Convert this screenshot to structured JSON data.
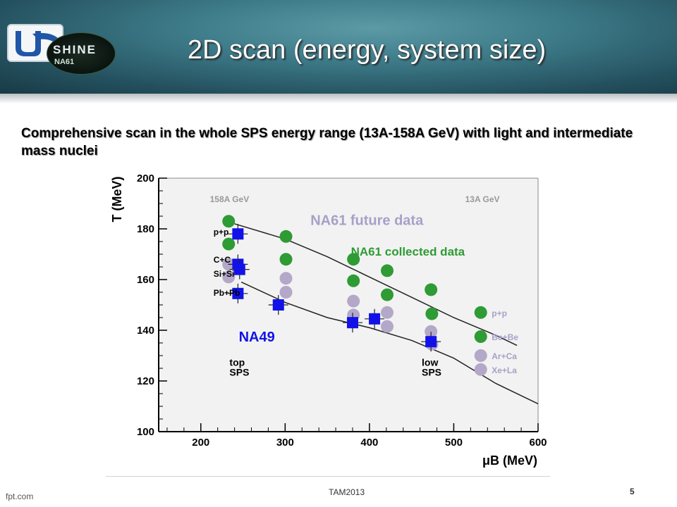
{
  "slide": {
    "title": "2D scan (energy, system size)",
    "subtitle": "Comprehensive scan in the whole SPS energy range (13A-158A GeV) with light and intermediate mass nuclei",
    "footer_left": "fpt.com",
    "footer_center": "TAM2013",
    "page_number": "5",
    "logo_shine": "SHINE",
    "logo_na61": "NA61"
  },
  "chart_data": {
    "type": "scatter",
    "xlabel": "μB (MeV)",
    "ylabel": "T (MeV)",
    "xlim": [
      150,
      600
    ],
    "ylim": [
      100,
      200
    ],
    "x_ticks": [
      200,
      300,
      400,
      500,
      600
    ],
    "y_ticks": [
      100,
      120,
      140,
      160,
      180,
      200
    ],
    "annotations": {
      "top_left_energy": "158A GeV",
      "top_right_energy": "13A GeV",
      "future_label": "NA61 future data",
      "collected_label": "NA61 collected data",
      "na49_label": "NA49",
      "top_sps": "top\nSPS",
      "low_sps": "low\nSPS"
    },
    "left_system_labels": [
      {
        "text": "p+p",
        "y": 179
      },
      {
        "text": "C+C",
        "y": 168
      },
      {
        "text": "Si+Si",
        "y": 162.5
      },
      {
        "text": "Pb+Pb",
        "y": 155
      }
    ],
    "right_legend": [
      {
        "text": "p+p",
        "color": "#2e9b34",
        "y": 147
      },
      {
        "text": "Be+Be",
        "color": "#2e9b34",
        "y": 137.5
      },
      {
        "text": "Ar+Ca",
        "color": "#b3a8c8",
        "y": 130
      },
      {
        "text": "Xe+La",
        "color": "#b3a8c8",
        "y": 124.5
      }
    ],
    "curves": [
      {
        "name": "p+p freeze-out line",
        "points": [
          [
            240,
            182
          ],
          [
            300,
            176
          ],
          [
            350,
            169
          ],
          [
            400,
            161
          ],
          [
            450,
            153
          ],
          [
            500,
            145
          ],
          [
            550,
            138
          ],
          [
            575,
            134
          ]
        ]
      },
      {
        "name": "Pb+Pb freeze-out line",
        "points": [
          [
            248,
            159
          ],
          [
            300,
            151
          ],
          [
            350,
            145
          ],
          [
            400,
            141
          ],
          [
            450,
            136
          ],
          [
            500,
            129
          ],
          [
            550,
            119
          ],
          [
            600,
            111
          ]
        ]
      }
    ],
    "series": [
      {
        "name": "NA61 collected data",
        "color": "#2e9b34",
        "x": [
          233,
          233,
          301,
          301,
          381,
          381,
          421,
          421,
          473,
          474,
          532,
          532
        ],
        "y": [
          183,
          174,
          177,
          168,
          168,
          159.5,
          163.5,
          154,
          156,
          146.5,
          147,
          137.5
        ]
      },
      {
        "name": "NA61 future data",
        "color": "#b3a8c8",
        "x": [
          233,
          233,
          301,
          301,
          381,
          381,
          421,
          421,
          473,
          474,
          532,
          532
        ],
        "y": [
          166,
          161,
          160.5,
          155,
          151.5,
          146,
          147,
          141.5,
          139.5,
          134.5,
          130,
          124.5
        ]
      },
      {
        "name": "NA49",
        "color": "#1212e8",
        "x": [
          244,
          244,
          246,
          244,
          292,
          380,
          406,
          473
        ],
        "y": [
          178,
          166,
          164,
          154.5,
          150,
          143,
          144.5,
          135.5
        ]
      }
    ]
  }
}
